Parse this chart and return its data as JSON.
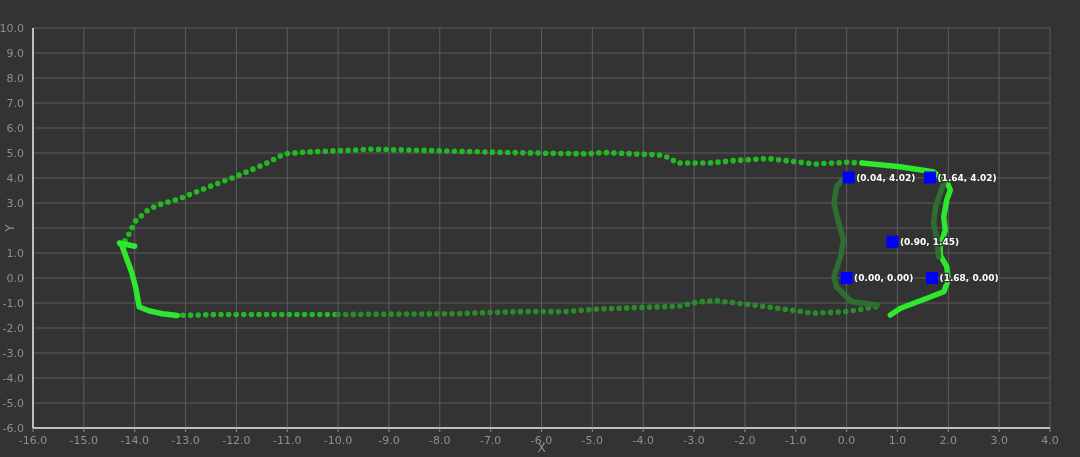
{
  "chart_data": {
    "type": "line",
    "xlabel": "X",
    "ylabel": "Y",
    "xlim": [
      -16,
      4
    ],
    "ylim": [
      -6,
      10
    ],
    "xticks": [
      {
        "value": -16,
        "label": "-16.0"
      },
      {
        "value": -15,
        "label": "-15.0"
      },
      {
        "value": -14,
        "label": "-14.0"
      },
      {
        "value": -13,
        "label": "-13.0"
      },
      {
        "value": -12,
        "label": "-12.0"
      },
      {
        "value": -11,
        "label": "-11.0"
      },
      {
        "value": -10,
        "label": "-10.0"
      },
      {
        "value": -9,
        "label": "-9.0"
      },
      {
        "value": -8,
        "label": "-8.0"
      },
      {
        "value": -7,
        "label": "-7.0"
      },
      {
        "value": -6,
        "label": "-6.0"
      },
      {
        "value": -5,
        "label": "-5.0"
      },
      {
        "value": -4,
        "label": "-4.0"
      },
      {
        "value": -3,
        "label": "-3.0"
      },
      {
        "value": -2,
        "label": "-2.0"
      },
      {
        "value": -1,
        "label": "-1.0"
      },
      {
        "value": 0,
        "label": "0.0"
      },
      {
        "value": 1,
        "label": "1.0"
      },
      {
        "value": 2,
        "label": "2.0"
      },
      {
        "value": 3,
        "label": "3.0"
      },
      {
        "value": 4,
        "label": "4.0"
      }
    ],
    "yticks": [
      {
        "value": 10,
        "label": "10.0"
      },
      {
        "value": 9,
        "label": "9.0"
      },
      {
        "value": 8,
        "label": "8.0"
      },
      {
        "value": 7,
        "label": "7.0"
      },
      {
        "value": 6,
        "label": "6.0"
      },
      {
        "value": 5,
        "label": "5.0"
      },
      {
        "value": 4,
        "label": "4.0"
      },
      {
        "value": 3,
        "label": "3.0"
      },
      {
        "value": 2,
        "label": null
      },
      {
        "value": 1,
        "label": "1.0"
      },
      {
        "value": 0,
        "label": "0.0"
      },
      {
        "value": -1,
        "label": "-1.0"
      },
      {
        "value": -2,
        "label": "-2.0"
      },
      {
        "value": -3,
        "label": "-3.0"
      },
      {
        "value": -4,
        "label": "-4.0"
      },
      {
        "value": -5,
        "label": "-5.0"
      },
      {
        "value": -6,
        "label": "-6.0"
      }
    ],
    "grid": true,
    "series": [
      {
        "line_style": "dotted",
        "color": "#22b922",
        "x": [
          0.3,
          0.0,
          -0.6,
          -1.0,
          -1.55,
          -2.2,
          -2.7,
          -3.35,
          -3.45,
          -3.65,
          -4.8,
          -5.05,
          -5.6,
          -7.1,
          -8.6,
          -9.35,
          -10.7,
          -11.05,
          -11.45,
          -12.0,
          -12.6,
          -13.15,
          -13.55,
          -13.75,
          -14.0,
          -14.1,
          -14.2
        ],
        "values": [
          4.6,
          4.63,
          4.56,
          4.65,
          4.78,
          4.7,
          4.6,
          4.6,
          4.78,
          4.92,
          5.02,
          4.97,
          4.98,
          5.04,
          5.12,
          5.15,
          5.03,
          4.97,
          4.55,
          4.07,
          3.6,
          3.15,
          2.92,
          2.7,
          2.25,
          1.8,
          1.45
        ]
      },
      {
        "line_style": "dotted",
        "color": "#22b922",
        "x": [
          -13.2,
          -12.4,
          -11.2,
          -10.0
        ],
        "values": [
          -1.5,
          -1.46,
          -1.46,
          -1.46
        ]
      },
      {
        "line_style": "dotted",
        "color": "#2b8a2b",
        "x": [
          -10.0,
          -7.8,
          -6.3,
          -5.6,
          -4.8,
          -3.65,
          -3.3,
          -3.0,
          -2.8,
          -2.55,
          -2.0,
          -1.35,
          -0.65,
          -0.05,
          0.3,
          0.7
        ],
        "values": [
          -1.46,
          -1.43,
          -1.34,
          -1.35,
          -1.23,
          -1.15,
          -1.13,
          -0.99,
          -0.93,
          -0.91,
          -1.04,
          -1.21,
          -1.41,
          -1.35,
          -1.25,
          -1.1
        ]
      },
      {
        "line_style": "solid",
        "color": "#2ee82e",
        "x": [
          0.3,
          1.05,
          1.7,
          1.97,
          2.04,
          1.97,
          1.91,
          1.94,
          1.84,
          1.84,
          1.97,
          2.0,
          1.91,
          1.58,
          1.06,
          0.86
        ],
        "values": [
          4.6,
          4.45,
          4.25,
          3.85,
          3.52,
          3.12,
          2.45,
          1.92,
          1.25,
          0.92,
          0.45,
          -0.08,
          -0.55,
          -0.81,
          -1.21,
          -1.48
        ]
      },
      {
        "line_style": "solid",
        "color": "#2ee82e",
        "x": [
          -14.0,
          -14.3,
          -14.25,
          -14.17,
          -14.06,
          -13.98,
          -13.91,
          -13.72,
          -13.46,
          -13.16
        ],
        "values": [
          1.27,
          1.4,
          1.3,
          0.84,
          0.23,
          -0.39,
          -1.16,
          -1.31,
          -1.43,
          -1.5
        ]
      },
      {
        "line_style": "solid",
        "color": "#2f6e31",
        "x": [
          0.6,
          0.1,
          -0.2,
          -0.25,
          -0.12,
          -0.06,
          -0.18,
          -0.25,
          -0.2,
          -0.05
        ],
        "values": [
          -1.08,
          -0.95,
          -0.35,
          0.05,
          0.85,
          1.52,
          2.4,
          3.0,
          3.65,
          4.0
        ]
      },
      {
        "line_style": "solid",
        "color": "#2f6e31",
        "x": [
          1.91,
          1.75,
          1.71,
          1.78,
          1.81
        ],
        "values": [
          3.79,
          2.85,
          2.19,
          1.52,
          0.85
        ]
      },
      {
        "type": "scatter",
        "marker": "square",
        "color": "#0000ff",
        "x": [
          0.04,
          1.64,
          0.9,
          0.0,
          1.68
        ],
        "values": [
          4.02,
          4.02,
          1.45,
          0.0,
          0.0
        ],
        "value_labels": [
          "(0.04, 4.02)",
          "(1.64, 4.02)",
          "(0.90, 1.45)",
          "(0.00, 0.00)",
          "(1.68, 0.00)"
        ]
      }
    ]
  }
}
